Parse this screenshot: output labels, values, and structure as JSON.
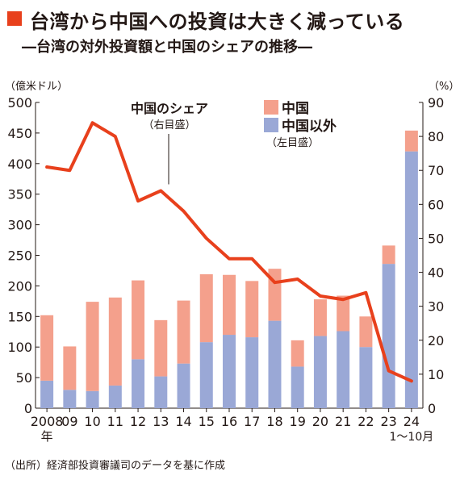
{
  "header": {
    "title": "台湾から中国への投資は大きく減っている",
    "subtitle": "―台湾の対外投資額と中国のシェアの推移―"
  },
  "source": "（出所）経済部投資審議司のデータを基に作成",
  "colors": {
    "accent": "#e8401c",
    "china_bar": "#f4a08c",
    "other_bar": "#9aa8d6",
    "line": "#e8401c"
  },
  "chart_data": {
    "type": "bar",
    "stacked": true,
    "x_first_label": "2008",
    "x_first_sublabel": "年",
    "x_last_sublabel": "1～10月",
    "categories": [
      "2008",
      "09",
      "10",
      "11",
      "12",
      "13",
      "14",
      "15",
      "16",
      "17",
      "18",
      "19",
      "20",
      "21",
      "22",
      "23",
      "24"
    ],
    "series": [
      {
        "name": "中国以外",
        "axis": "left",
        "values": [
          45,
          30,
          28,
          37,
          80,
          52,
          73,
          108,
          120,
          116,
          143,
          68,
          118,
          126,
          100,
          236,
          420
        ]
      },
      {
        "name": "中国",
        "axis": "left",
        "values": [
          107,
          71,
          146,
          144,
          129,
          92,
          103,
          111,
          98,
          92,
          85,
          43,
          60,
          58,
          50,
          30,
          34
        ]
      }
    ],
    "line_series": {
      "name": "中国のシェア",
      "sublabel": "（右目盛）",
      "axis": "right",
      "values": [
        71,
        70,
        84,
        80,
        61,
        64,
        58,
        50,
        44,
        44,
        37,
        38,
        33,
        32,
        34,
        11,
        8
      ]
    },
    "legend_sublabel": "（左目盛）",
    "ylabel_left": "（億米ドル）",
    "ylabel_right": "（%）",
    "ylim_left": [
      0,
      500
    ],
    "yticks_left": [
      0,
      50,
      100,
      150,
      200,
      250,
      300,
      350,
      400,
      450,
      500
    ],
    "ylim_right": [
      0,
      90
    ],
    "yticks_right": [
      0,
      10,
      20,
      30,
      40,
      50,
      60,
      70,
      80,
      90
    ],
    "legend_position": "top-right"
  }
}
